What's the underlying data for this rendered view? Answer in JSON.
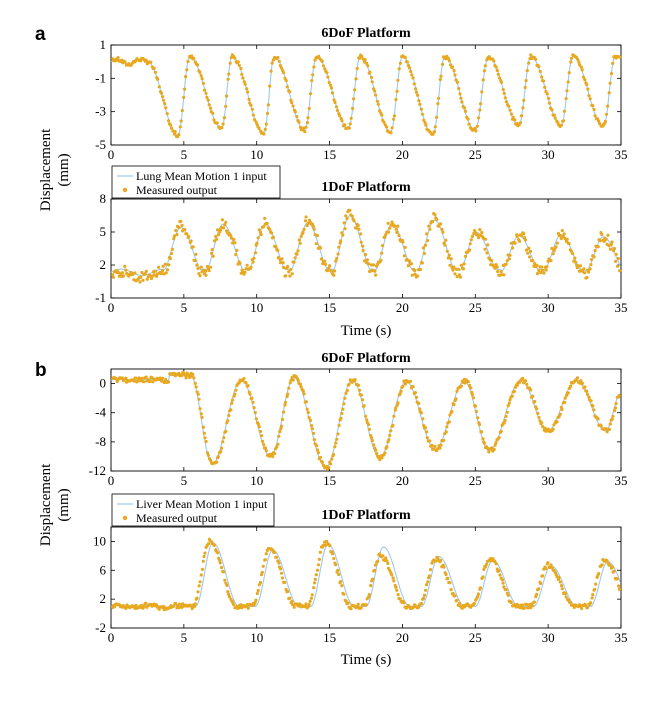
{
  "panel_labels": [
    "a",
    "b"
  ],
  "ylabel_lines": [
    "Displacement",
    "(mm)"
  ],
  "xlabel": "Time (s)",
  "colors": {
    "input": "#9ec8e6",
    "output": "#e8a820",
    "axis": "#000000"
  },
  "legend_a": {
    "input": "Lung Mean Motion 1 input",
    "output": "Measured output"
  },
  "legend_b": {
    "input": "Liver Mean Motion 1 input",
    "output": "Measured output"
  },
  "chart_data": [
    {
      "type": "line",
      "panel": "a",
      "title": "6DoF Platform",
      "xlim": [
        0,
        35
      ],
      "ylim": [
        -5,
        1
      ],
      "xticks": [
        0,
        5,
        10,
        15,
        20,
        25,
        30,
        35
      ],
      "yticks": [
        1,
        -1,
        -3,
        -5
      ],
      "series": [
        {
          "name": "Lung Mean Motion 1 input",
          "kind": "line"
        },
        {
          "name": "Measured output",
          "kind": "scatter"
        }
      ],
      "signal": {
        "start": 2.5,
        "baseline": 0,
        "low": -4.3,
        "high": 0.3,
        "peaks": [
          5.4,
          8.3,
          11.2,
          14.1,
          17.1,
          20.0,
          22.9,
          25.9,
          28.8,
          31.7,
          34.6
        ],
        "troughs": [
          4.6,
          7.6,
          10.5,
          13.3,
          16.3,
          19.2,
          22.1,
          25.0,
          28.0,
          30.9,
          33.8
        ],
        "trough_values": [
          -4.4,
          -4.0,
          -4.3,
          -4.1,
          -4.0,
          -4.2,
          -4.4,
          -4.1,
          -3.8,
          -3.8,
          -3.9
        ]
      }
    },
    {
      "type": "line",
      "panel": "a",
      "title": "1DoF Platform",
      "xlim": [
        0,
        35
      ],
      "ylim": [
        -1,
        8
      ],
      "xticks": [
        0,
        5,
        10,
        15,
        20,
        25,
        30,
        35
      ],
      "yticks": [
        8,
        5,
        2,
        -1
      ],
      "series": [
        {
          "name": "Lung Mean Motion 1 input",
          "kind": "line"
        },
        {
          "name": "Measured output",
          "kind": "scatter"
        }
      ],
      "signal": {
        "start": 0,
        "baseline": 1.2,
        "low": 1.0,
        "peaks": [
          4.8,
          7.7,
          10.6,
          13.5,
          16.4,
          19.3,
          22.2,
          25.1,
          28.0,
          30.9,
          33.8
        ],
        "peak_values": [
          5.5,
          5.8,
          5.8,
          5.9,
          6.6,
          5.8,
          6.2,
          5.0,
          4.7,
          4.8,
          4.6
        ]
      }
    },
    {
      "type": "line",
      "panel": "b",
      "title": "6DoF Platform",
      "xlim": [
        0,
        35
      ],
      "ylim": [
        -12,
        2
      ],
      "xticks": [
        0,
        5,
        10,
        15,
        20,
        25,
        30,
        35
      ],
      "yticks": [
        0,
        -4,
        -8,
        -12
      ],
      "series": [
        {
          "name": "Liver Mean Motion 1 input",
          "kind": "line"
        },
        {
          "name": "Measured output",
          "kind": "scatter"
        }
      ],
      "signal": {
        "start": 5.5,
        "baseline": 0.5,
        "troughs": [
          7.0,
          11.0,
          14.8,
          18.5,
          22.3,
          26.0,
          30.0,
          34.0
        ],
        "trough_values": [
          -11.0,
          -10.0,
          -11.5,
          -10.2,
          -9.0,
          -9.2,
          -6.5,
          -6.5
        ],
        "peaks": [
          5.5,
          9.0,
          12.6,
          16.6,
          20.3,
          24.3,
          28.2,
          32.0
        ],
        "peak_values": [
          1.2,
          0.5,
          0.8,
          0.5,
          0.3,
          0.3,
          0.5,
          0.5
        ]
      }
    },
    {
      "type": "line",
      "panel": "b",
      "title": "1DoF Platform",
      "xlim": [
        0,
        35
      ],
      "ylim": [
        -2,
        12
      ],
      "xticks": [
        0,
        5,
        10,
        15,
        20,
        25,
        30,
        35
      ],
      "yticks": [
        10,
        6,
        2,
        -2
      ],
      "series": [
        {
          "name": "Liver Mean Motion 1 input",
          "kind": "line"
        },
        {
          "name": "Measured output",
          "kind": "scatter"
        }
      ],
      "signal": {
        "start": 5.5,
        "baseline": 1.0,
        "peaks": [
          6.8,
          10.9,
          14.7,
          18.5,
          22.3,
          26.0,
          30.0,
          33.9
        ],
        "peak_values": [
          10.2,
          9.0,
          9.8,
          8.0,
          7.6,
          7.6,
          6.8,
          7.4
        ],
        "input_peak_values": [
          9.8,
          8.8,
          9.6,
          9.2,
          7.9,
          7.4,
          6.6,
          7.2
        ]
      }
    }
  ]
}
